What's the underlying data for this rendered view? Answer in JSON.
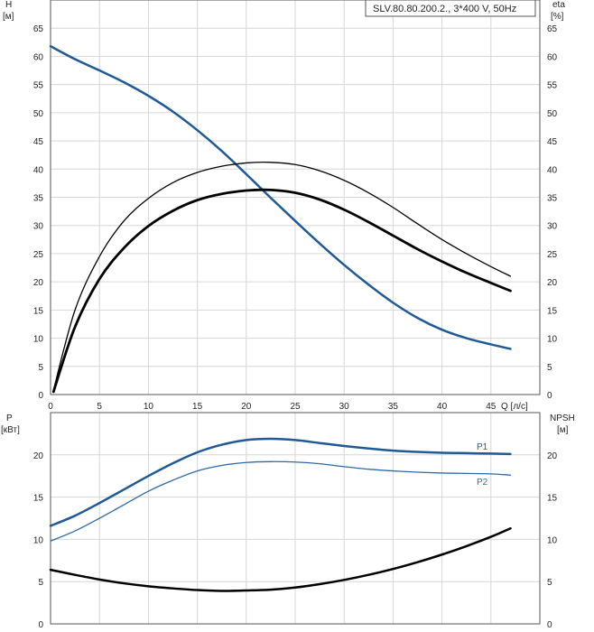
{
  "chart_data": [
    {
      "type": "line",
      "legend_text": "SLV.80.80.200.2., 3*400 V, 50Hz",
      "legend_position": "top-right",
      "y_left_label_name": "H",
      "y_left_label_unit": "[м]",
      "y_right_label_name": "eta",
      "y_right_label_unit": "[%]",
      "x_label": "Q [л/с]",
      "xlim": [
        0,
        50
      ],
      "ylim": [
        0,
        70
      ],
      "grid": true,
      "x_ticks": [
        "0",
        "5",
        "10",
        "15",
        "20",
        "25",
        "30",
        "35",
        "40",
        "45"
      ],
      "y_ticks_left": [
        "0",
        "5",
        "10",
        "15",
        "20",
        "25",
        "30",
        "35",
        "40",
        "45",
        "50",
        "55",
        "60",
        "65"
      ],
      "y_ticks_right": [
        "0",
        "5",
        "10",
        "15",
        "20",
        "25",
        "30",
        "35",
        "40",
        "45",
        "50",
        "55",
        "60",
        "65"
      ],
      "series": [
        {
          "key": "H",
          "color": "#1f5a96",
          "x": [
            0,
            2.5,
            5,
            7.5,
            10,
            12.5,
            15,
            17.5,
            20,
            22.5,
            25,
            27.5,
            30,
            32.5,
            35,
            37.5,
            40,
            42.5,
            45,
            47
          ],
          "values": [
            61.8,
            59.5,
            57.5,
            55.4,
            53.0,
            50.2,
            46.9,
            43.2,
            39.1,
            34.9,
            30.8,
            26.8,
            23.0,
            19.5,
            16.3,
            13.6,
            11.5,
            10.0,
            8.9,
            8.1
          ]
        },
        {
          "key": "eta",
          "color": "#000000",
          "x": [
            0.3,
            2.5,
            5,
            7.5,
            10,
            12.5,
            15,
            17.5,
            20,
            22.5,
            25,
            27.5,
            30,
            32.5,
            35,
            37.5,
            40,
            42.5,
            45,
            47
          ],
          "values": [
            0.5,
            12.0,
            20.5,
            26.0,
            29.9,
            32.6,
            34.5,
            35.6,
            36.2,
            36.3,
            35.8,
            34.6,
            32.8,
            30.6,
            28.2,
            25.8,
            23.6,
            21.6,
            19.8,
            18.4
          ]
        },
        {
          "key": "eta_thin",
          "color": "#000000",
          "x": [
            0.3,
            2.5,
            5,
            7.5,
            10,
            12.5,
            15,
            17.5,
            20,
            22.5,
            25,
            27.5,
            30,
            32.5,
            35,
            37.5,
            40,
            42.5,
            45,
            47
          ],
          "values": [
            0.8,
            15.0,
            24.5,
            30.8,
            34.8,
            37.6,
            39.4,
            40.5,
            41.1,
            41.2,
            40.8,
            39.7,
            38.0,
            35.8,
            33.2,
            30.3,
            27.5,
            25.0,
            22.7,
            21.0
          ]
        }
      ]
    },
    {
      "type": "line",
      "y_left_label_name": "P",
      "y_left_label_unit": "[кВт]",
      "y_right_label_name": "NPSH",
      "y_right_label_unit": "[м]",
      "xlim": [
        0,
        50
      ],
      "ylim": [
        0,
        25
      ],
      "grid": true,
      "y_ticks_left": [
        "0",
        "5",
        "10",
        "15",
        "20"
      ],
      "y_ticks_right": [
        "0",
        "5",
        "10",
        "15",
        "20"
      ],
      "series": [
        {
          "name": "P1",
          "color": "#1f5a96",
          "x": [
            0,
            2.5,
            5,
            7.5,
            10,
            12.5,
            15,
            17.5,
            20,
            22.5,
            25,
            27.5,
            30,
            32.5,
            35,
            37.5,
            40,
            42.5,
            45,
            47
          ],
          "values": [
            11.6,
            12.8,
            14.3,
            15.9,
            17.5,
            19.0,
            20.3,
            21.2,
            21.75,
            21.9,
            21.75,
            21.4,
            21.05,
            20.75,
            20.5,
            20.35,
            20.25,
            20.2,
            20.15,
            20.1
          ]
        },
        {
          "name": "P2",
          "color": "#2e6aa8",
          "x": [
            0,
            2.5,
            5,
            7.5,
            10,
            12.5,
            15,
            17.5,
            20,
            22.5,
            25,
            27.5,
            30,
            32.5,
            35,
            37.5,
            40,
            42.5,
            45,
            47
          ],
          "values": [
            9.8,
            11.0,
            12.5,
            14.1,
            15.7,
            17.0,
            18.1,
            18.75,
            19.1,
            19.2,
            19.15,
            18.95,
            18.6,
            18.3,
            18.1,
            17.95,
            17.85,
            17.8,
            17.75,
            17.6
          ]
        },
        {
          "key": "NPSH",
          "color": "#000000",
          "x": [
            0,
            2.5,
            5,
            7.5,
            10,
            12.5,
            15,
            17.5,
            20,
            22.5,
            25,
            27.5,
            30,
            32.5,
            35,
            37.5,
            40,
            42.5,
            45,
            47
          ],
          "values": [
            6.4,
            5.8,
            5.25,
            4.8,
            4.45,
            4.2,
            4.0,
            3.9,
            3.95,
            4.05,
            4.3,
            4.7,
            5.2,
            5.8,
            6.5,
            7.3,
            8.2,
            9.2,
            10.3,
            11.3
          ]
        }
      ]
    }
  ]
}
